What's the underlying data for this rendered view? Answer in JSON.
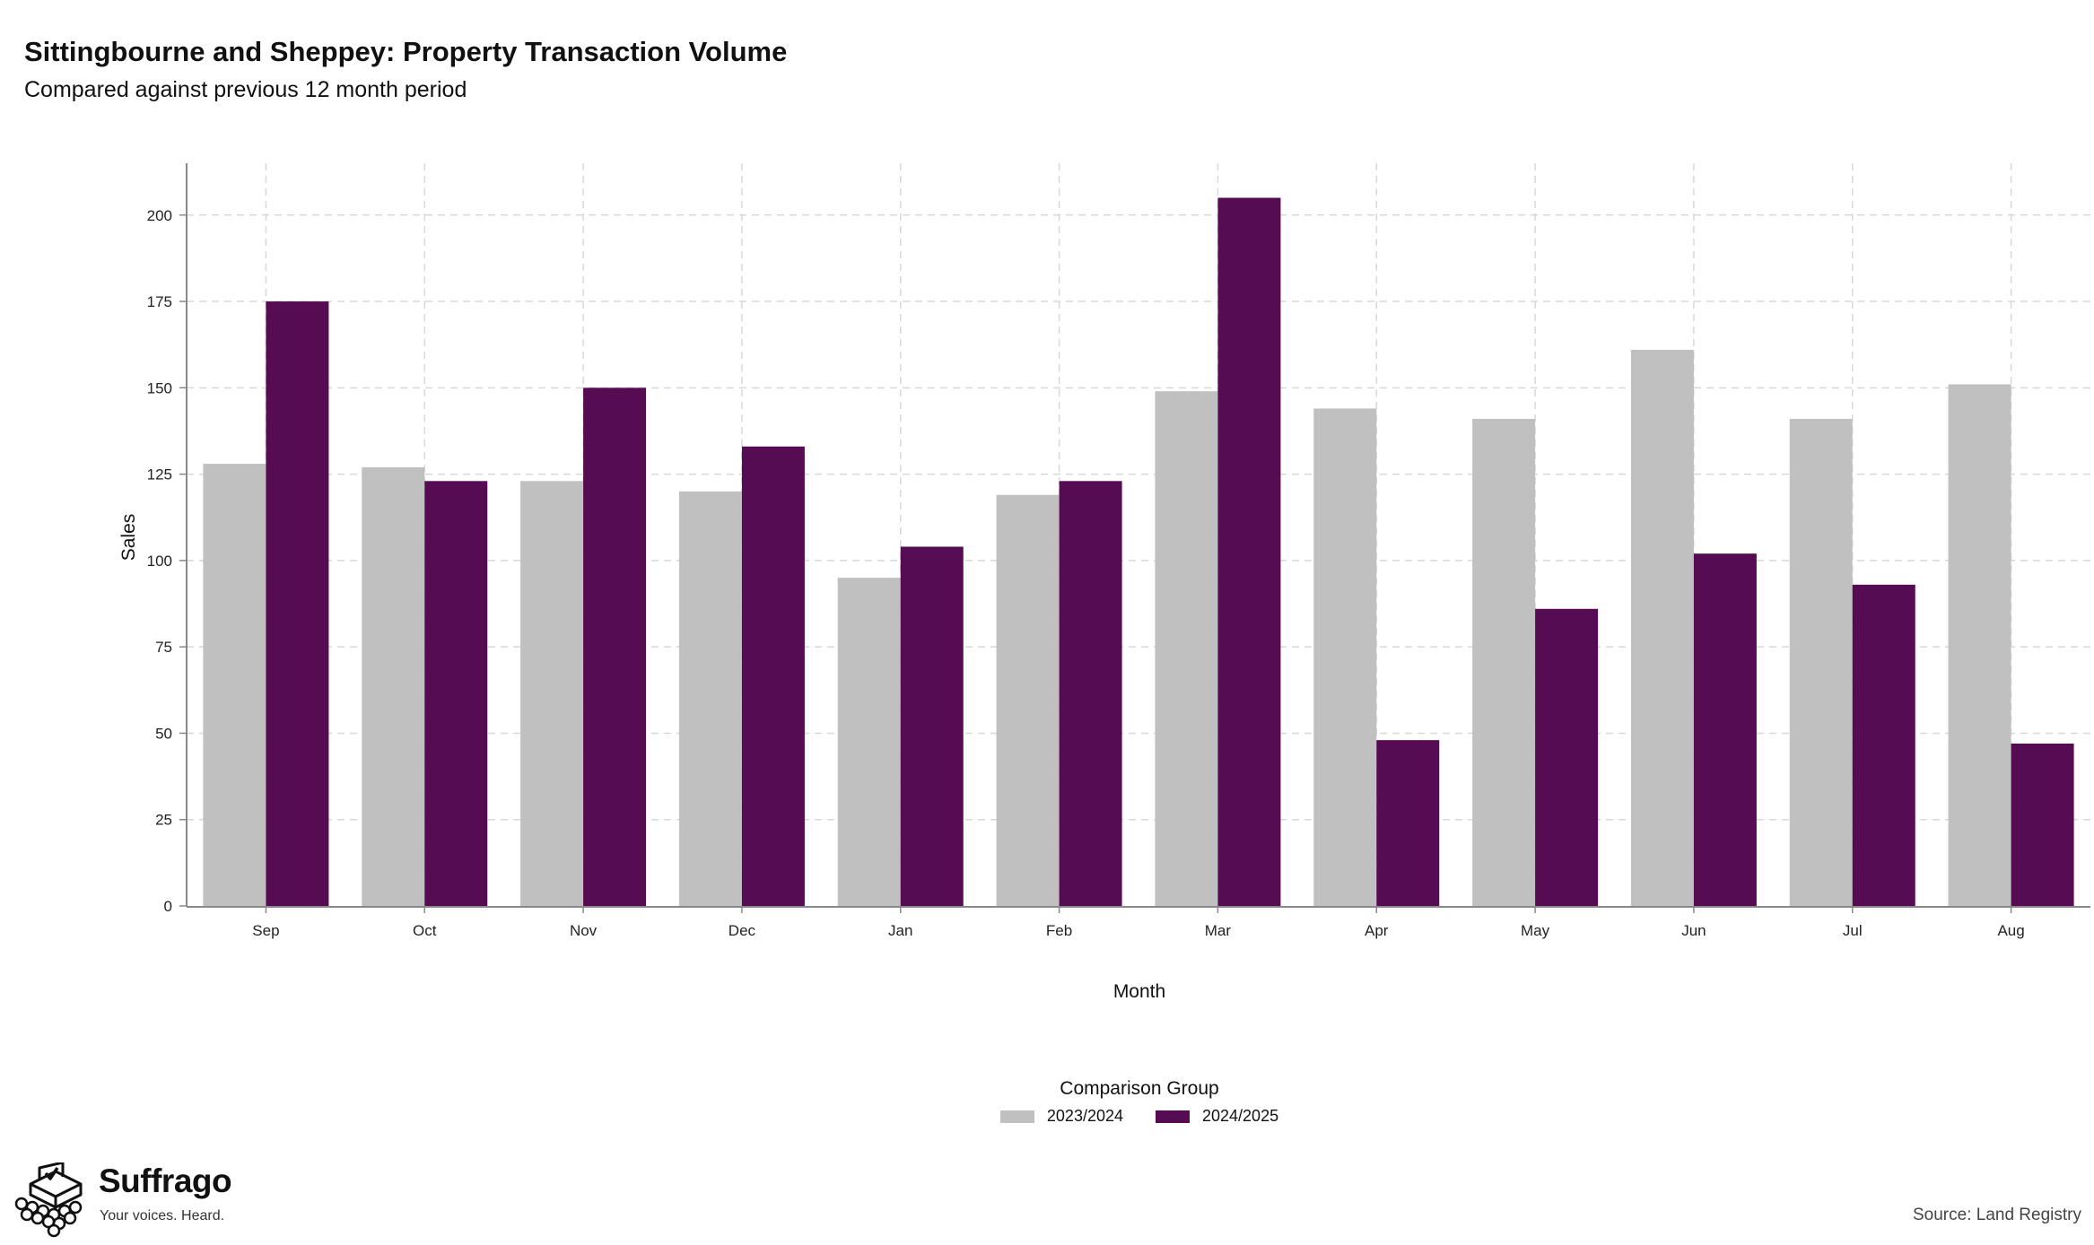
{
  "chart_data": {
    "type": "bar",
    "title": "Sittingbourne and Sheppey: Property Transaction Volume",
    "subtitle": "Compared against previous 12 month period",
    "xlabel": "Month",
    "ylabel": "Sales",
    "categories": [
      "Sep",
      "Oct",
      "Nov",
      "Dec",
      "Jan",
      "Feb",
      "Mar",
      "Apr",
      "May",
      "Jun",
      "Jul",
      "Aug"
    ],
    "ylim": [
      0,
      215
    ],
    "yticks": [
      0,
      25,
      50,
      75,
      100,
      125,
      150,
      175,
      200
    ],
    "grid": true,
    "legend_title": "Comparison Group",
    "legend_position": "bottom",
    "series": [
      {
        "name": "2023/2024",
        "color": "#c0c0c0",
        "values": [
          128,
          127,
          123,
          120,
          95,
          119,
          149,
          144,
          141,
          161,
          141,
          151
        ]
      },
      {
        "name": "2024/2025",
        "color": "#560c52",
        "values": [
          175,
          123,
          150,
          133,
          104,
          123,
          205,
          48,
          86,
          102,
          93,
          47
        ]
      }
    ]
  },
  "branding": {
    "name": "Suffrago",
    "tagline": "Your voices. Heard.",
    "icon": "ballot-box-icon"
  },
  "source": "Source: Land Registry"
}
